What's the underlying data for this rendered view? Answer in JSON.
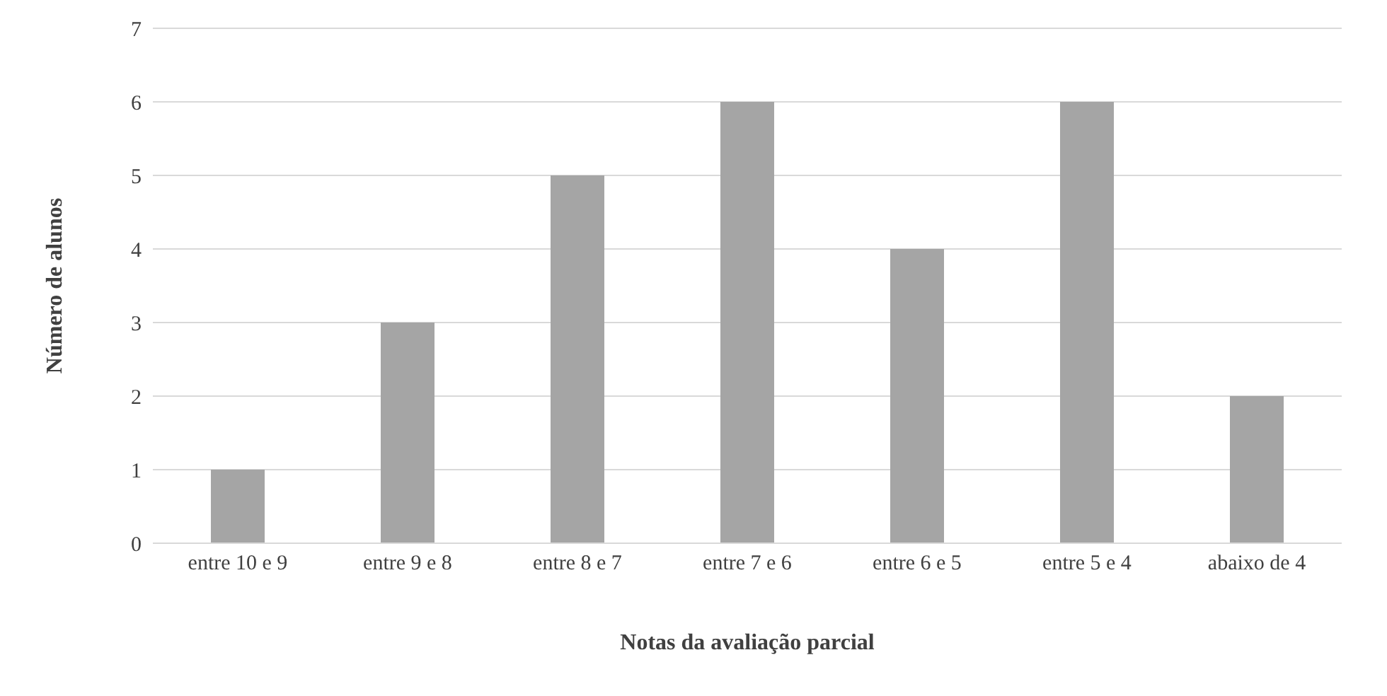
{
  "chart_data": {
    "type": "bar",
    "xlabel": "Notas da avaliação parcial",
    "ylabel": "Número de alunos",
    "categories": [
      "entre 10 e 9",
      "entre 9 e 8",
      "entre 8 e 7",
      "entre 7 e 6",
      "entre 6 e 5",
      "entre 5 e 4",
      "abaixo de 4"
    ],
    "values": [
      1,
      3,
      5,
      6,
      4,
      6,
      2
    ],
    "color": "#a5a5a5",
    "ylim": [
      0,
      7
    ],
    "yticks": [
      0,
      1,
      2,
      3,
      4,
      5,
      6,
      7
    ],
    "grid": "y"
  }
}
